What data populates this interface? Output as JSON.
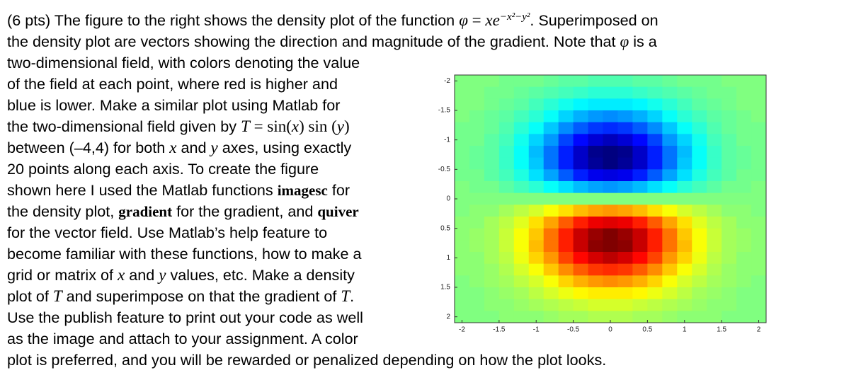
{
  "text": {
    "lines": [
      [
        "(6 pts) The figure to the right shows the density plot of the function ",
        "φ",
        " = ",
        "xe",
        "−x²−y²",
        ". Superimposed on"
      ],
      [
        "the density plot are vectors showing the direction and magnitude of the gradient. Note that ",
        "φ",
        " is a"
      ],
      [
        "two-dimensional field, with colors denoting the value"
      ],
      [
        "of the field at each point, where red is higher and"
      ],
      [
        "blue is lower. Make a similar plot using Matlab for"
      ],
      [
        "the two-dimensional field given by ",
        "T",
        " = sin(",
        "x",
        ") sin (",
        "y",
        ")"
      ],
      [
        "between (–4,4) for both ",
        "x",
        " and ",
        "y",
        " axes, using exactly"
      ],
      [
        "20 points along each axis. To create the figure"
      ],
      [
        "shown here I used the Matlab functions ",
        "imagesc",
        " for"
      ],
      [
        "the density plot, ",
        "gradient",
        " for the gradient, and ",
        "quiver"
      ],
      [
        "for the vector field. Use Matlab’s help feature to"
      ],
      [
        "become familiar with these functions, how to make a"
      ],
      [
        "grid or matrix of ",
        "x",
        " and ",
        "y",
        " values, etc. Make a density"
      ],
      [
        "plot of ",
        "T",
        " and superimpose on that the gradient of ",
        "T",
        "."
      ],
      [
        "Use the publish feature to print out your code as well"
      ],
      [
        "as the image and attach to your assignment. A color"
      ],
      [
        "plot is preferred, and you will be rewarded or penalized depending on how the plot looks."
      ]
    ]
  },
  "chart_data": {
    "type": "heatmap",
    "colormap": "jet",
    "y_reversed": true,
    "x": [
      -2,
      -1.8,
      -1.6,
      -1.4,
      -1.2,
      -1,
      -0.8,
      -0.6,
      -0.4,
      -0.2,
      0,
      0.2,
      0.4,
      0.6,
      0.8,
      1,
      1.2,
      1.4,
      1.6,
      1.8,
      2
    ],
    "y": [
      -2,
      -1.8,
      -1.6,
      -1.4,
      -1.2,
      -1,
      -0.8,
      -0.6,
      -0.4,
      -0.2,
      0,
      0.2,
      0.4,
      0.6,
      0.8,
      1,
      1.2,
      1.4,
      1.6,
      1.8,
      2
    ],
    "xlim": [
      -2.1,
      2.1
    ],
    "ylim": [
      -2.1,
      2.1
    ],
    "xticks": [
      -2,
      -1.5,
      -1,
      -0.5,
      0,
      0.5,
      1,
      1.5,
      2
    ],
    "yticks": [
      -2,
      -1.5,
      -1,
      -0.5,
      0,
      0.5,
      1,
      1.5,
      2
    ],
    "z": [
      [
        0,
        0,
        0,
        -0.01,
        -0.01,
        -0.01,
        -0.02,
        -0.03,
        -0.03,
        -0.04,
        -0.04,
        -0.04,
        -0.03,
        -0.03,
        -0.02,
        -0.01,
        -0.01,
        -0.01,
        0,
        0,
        0
      ],
      [
        0,
        0,
        -0.01,
        -0.01,
        -0.02,
        -0.03,
        -0.04,
        -0.05,
        -0.06,
        -0.07,
        -0.07,
        -0.07,
        -0.06,
        -0.05,
        -0.04,
        -0.03,
        -0.02,
        -0.01,
        -0.01,
        0,
        0
      ],
      [
        0,
        0,
        -0.01,
        -0.02,
        -0.03,
        -0.05,
        -0.07,
        -0.09,
        -0.11,
        -0.12,
        -0.12,
        -0.12,
        -0.11,
        -0.09,
        -0.07,
        -0.05,
        -0.03,
        -0.02,
        -0.01,
        0,
        0
      ],
      [
        0,
        -0.01,
        -0.02,
        -0.03,
        -0.05,
        -0.07,
        -0.1,
        -0.14,
        -0.17,
        -0.19,
        -0.2,
        -0.19,
        -0.17,
        -0.14,
        -0.1,
        -0.07,
        -0.05,
        -0.03,
        -0.02,
        -0.01,
        0
      ],
      [
        -0.01,
        -0.01,
        -0.02,
        -0.04,
        -0.07,
        -0.1,
        -0.15,
        -0.2,
        -0.24,
        -0.27,
        -0.28,
        -0.27,
        -0.24,
        -0.2,
        -0.15,
        -0.1,
        -0.07,
        -0.04,
        -0.02,
        -0.01,
        -0.01
      ],
      [
        -0.01,
        -0.01,
        -0.03,
        -0.05,
        -0.09,
        -0.14,
        -0.19,
        -0.26,
        -0.31,
        -0.35,
        -0.37,
        -0.35,
        -0.31,
        -0.26,
        -0.19,
        -0.14,
        -0.09,
        -0.05,
        -0.03,
        -0.01,
        -0.01
      ],
      [
        -0.01,
        -0.02,
        -0.03,
        -0.06,
        -0.1,
        -0.16,
        -0.22,
        -0.29,
        -0.36,
        -0.41,
        -0.42,
        -0.41,
        -0.36,
        -0.29,
        -0.22,
        -0.16,
        -0.1,
        -0.06,
        -0.03,
        -0.02,
        -0.01
      ],
      [
        -0.01,
        -0.02,
        -0.03,
        -0.06,
        -0.1,
        -0.15,
        -0.22,
        -0.29,
        -0.36,
        -0.4,
        -0.42,
        -0.4,
        -0.36,
        -0.29,
        -0.22,
        -0.15,
        -0.1,
        -0.06,
        -0.03,
        -0.02,
        -0.01
      ],
      [
        -0.01,
        -0.01,
        -0.03,
        -0.05,
        -0.08,
        -0.13,
        -0.18,
        -0.24,
        -0.29,
        -0.33,
        -0.34,
        -0.33,
        -0.29,
        -0.24,
        -0.18,
        -0.13,
        -0.08,
        -0.05,
        -0.03,
        -0.01,
        -0.01
      ],
      [
        0,
        -0.01,
        -0.01,
        -0.03,
        -0.05,
        -0.07,
        -0.1,
        -0.13,
        -0.16,
        -0.18,
        -0.19,
        -0.18,
        -0.16,
        -0.13,
        -0.1,
        -0.07,
        -0.05,
        -0.03,
        -0.01,
        -0.01,
        0
      ],
      [
        0,
        0,
        0,
        0,
        0,
        0,
        0,
        0,
        0,
        0,
        0,
        0,
        0,
        0,
        0,
        0,
        0,
        0,
        0,
        0,
        0
      ],
      [
        0,
        0.01,
        0.01,
        0.03,
        0.05,
        0.07,
        0.1,
        0.13,
        0.16,
        0.18,
        0.19,
        0.18,
        0.16,
        0.13,
        0.1,
        0.07,
        0.05,
        0.03,
        0.01,
        0.01,
        0
      ],
      [
        0.01,
        0.01,
        0.03,
        0.05,
        0.08,
        0.13,
        0.18,
        0.24,
        0.29,
        0.33,
        0.34,
        0.33,
        0.29,
        0.24,
        0.18,
        0.13,
        0.08,
        0.05,
        0.03,
        0.01,
        0.01
      ],
      [
        0.01,
        0.02,
        0.03,
        0.06,
        0.1,
        0.15,
        0.22,
        0.29,
        0.36,
        0.4,
        0.42,
        0.4,
        0.36,
        0.29,
        0.22,
        0.15,
        0.1,
        0.06,
        0.03,
        0.02,
        0.01
      ],
      [
        0.01,
        0.02,
        0.03,
        0.06,
        0.1,
        0.16,
        0.22,
        0.29,
        0.36,
        0.41,
        0.42,
        0.41,
        0.36,
        0.29,
        0.22,
        0.16,
        0.1,
        0.06,
        0.03,
        0.02,
        0.01
      ],
      [
        0.01,
        0.01,
        0.03,
        0.05,
        0.09,
        0.14,
        0.19,
        0.26,
        0.31,
        0.35,
        0.37,
        0.35,
        0.31,
        0.26,
        0.19,
        0.14,
        0.09,
        0.05,
        0.03,
        0.01,
        0.01
      ],
      [
        0.01,
        0.01,
        0.02,
        0.04,
        0.07,
        0.1,
        0.15,
        0.2,
        0.24,
        0.27,
        0.28,
        0.27,
        0.24,
        0.2,
        0.15,
        0.1,
        0.07,
        0.04,
        0.02,
        0.01,
        0.01
      ],
      [
        0,
        0.01,
        0.02,
        0.03,
        0.05,
        0.07,
        0.1,
        0.14,
        0.17,
        0.19,
        0.2,
        0.19,
        0.17,
        0.14,
        0.1,
        0.07,
        0.05,
        0.03,
        0.02,
        0.01,
        0
      ],
      [
        0,
        0,
        0.01,
        0.02,
        0.03,
        0.05,
        0.07,
        0.09,
        0.11,
        0.12,
        0.12,
        0.12,
        0.11,
        0.09,
        0.07,
        0.05,
        0.03,
        0.02,
        0.01,
        0,
        0
      ],
      [
        0,
        0,
        0.01,
        0.01,
        0.02,
        0.03,
        0.04,
        0.05,
        0.06,
        0.07,
        0.07,
        0.07,
        0.06,
        0.05,
        0.04,
        0.03,
        0.02,
        0.01,
        0.01,
        0,
        0
      ],
      [
        0,
        0,
        0,
        0.01,
        0.01,
        0.01,
        0.02,
        0.03,
        0.03,
        0.04,
        0.04,
        0.04,
        0.03,
        0.03,
        0.02,
        0.01,
        0.01,
        0.01,
        0,
        0,
        0
      ]
    ]
  }
}
